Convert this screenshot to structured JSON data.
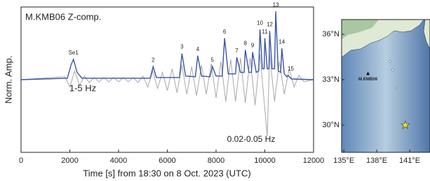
{
  "chart_data": [
    {
      "type": "line",
      "title": "M.KMB06 Z-comp.",
      "xlabel": "Time [s] from 18:30 on 8 Oct. 2023 (UTC)",
      "ylabel": "Norm. Amp.",
      "xlim": [
        0,
        12000
      ],
      "xticks": [
        0,
        2000,
        4000,
        6000,
        8000,
        10000,
        12000
      ],
      "ylim": [
        -1,
        1
      ],
      "series": [
        {
          "name": "0.02-0.05 Hz",
          "color": "#a8a8a8",
          "x": [
            0,
            1800,
            2000,
            2200,
            2400,
            2600,
            2800,
            3000,
            3200,
            3400,
            3600,
            3800,
            4000,
            4200,
            4400,
            4600,
            4800,
            5000,
            5200,
            5400,
            5600,
            5800,
            6000,
            6200,
            6400,
            6600,
            6800,
            7000,
            7200,
            7400,
            7600,
            7800,
            8000,
            8200,
            8400,
            8600,
            8800,
            9000,
            9200,
            9400,
            9600,
            9800,
            10000,
            10100,
            10200,
            10400,
            10600,
            10800,
            11000,
            11200,
            11400,
            11600,
            12000
          ],
          "values": [
            0,
            0.04,
            -0.1,
            0.12,
            -0.08,
            0.05,
            -0.04,
            0.03,
            -0.03,
            0.03,
            -0.03,
            0.03,
            -0.03,
            0.03,
            -0.03,
            0.03,
            -0.04,
            0.05,
            -0.1,
            0.12,
            -0.12,
            0.1,
            -0.15,
            0.15,
            -0.18,
            0.2,
            -0.2,
            0.18,
            -0.22,
            0.2,
            -0.2,
            0.22,
            -0.25,
            0.25,
            -0.3,
            0.28,
            -0.3,
            0.3,
            -0.32,
            0.3,
            -0.35,
            0.35,
            -0.4,
            -0.78,
            0.35,
            -0.3,
            0.25,
            -0.2,
            0.15,
            -0.1,
            0.06,
            -0.03,
            0
          ]
        },
        {
          "name": "1-5 Hz",
          "color": "#3a55a4",
          "x": [
            0,
            1900,
            2050,
            2150,
            2300,
            2500,
            5300,
            5420,
            5550,
            6500,
            6600,
            6750,
            7150,
            7250,
            7400,
            7750,
            7850,
            8000,
            8250,
            8350,
            8500,
            8800,
            8850,
            9000,
            9150,
            9200,
            9350,
            9450,
            9500,
            9650,
            9750,
            9800,
            9900,
            9970,
            10000,
            10100,
            10170,
            10200,
            10300,
            10400,
            10450,
            10550,
            10650,
            10700,
            10800,
            10900,
            10950,
            11100,
            12000
          ],
          "values": [
            0,
            0.02,
            0.2,
            0.28,
            0.1,
            0.02,
            0.02,
            0.18,
            0.03,
            0.03,
            0.36,
            0.05,
            0.04,
            0.33,
            0.05,
            0.04,
            0.18,
            0.05,
            0.05,
            0.57,
            0.08,
            0.08,
            0.31,
            0.1,
            0.1,
            0.41,
            0.1,
            0.1,
            0.38,
            0.1,
            0.12,
            0.69,
            0.15,
            0.15,
            0.57,
            0.15,
            0.15,
            0.67,
            0.15,
            0.15,
            0.94,
            0.12,
            0.1,
            0.43,
            0.08,
            0.04,
            0.06,
            0.01,
            0
          ]
        }
      ],
      "peaks": {
        "labels": [
          "Se1",
          "2",
          "3",
          "4",
          "5",
          "6",
          "7",
          "8",
          "9",
          "10",
          "11",
          "12",
          "13",
          "14",
          "15"
        ],
        "x": [
          2150,
          5420,
          6600,
          7250,
          7850,
          8350,
          8850,
          9200,
          9500,
          9800,
          10000,
          10200,
          10450,
          10700,
          10950
        ],
        "values": [
          0.28,
          0.18,
          0.36,
          0.33,
          0.18,
          0.57,
          0.31,
          0.41,
          0.38,
          0.69,
          0.57,
          0.67,
          0.94,
          0.43,
          0.06
        ]
      }
    },
    {
      "type": "map",
      "xlim": [
        134.8,
        142.85
      ],
      "ylim": [
        28.2,
        36.97
      ],
      "xticks": [
        {
          "value": 135,
          "label": "135°E"
        },
        {
          "value": 138,
          "label": "138°E"
        },
        {
          "value": 141,
          "label": "141°E"
        }
      ],
      "yticks": [
        {
          "value": 30,
          "label": "30°N"
        },
        {
          "value": 33,
          "label": "33°N"
        },
        {
          "value": 36,
          "label": "36°N"
        }
      ],
      "station": {
        "name": "M.KMB06",
        "lon": 137.2,
        "lat": 33.4
      },
      "epicenter": {
        "lon": 140.6,
        "lat": 30.0
      }
    }
  ]
}
